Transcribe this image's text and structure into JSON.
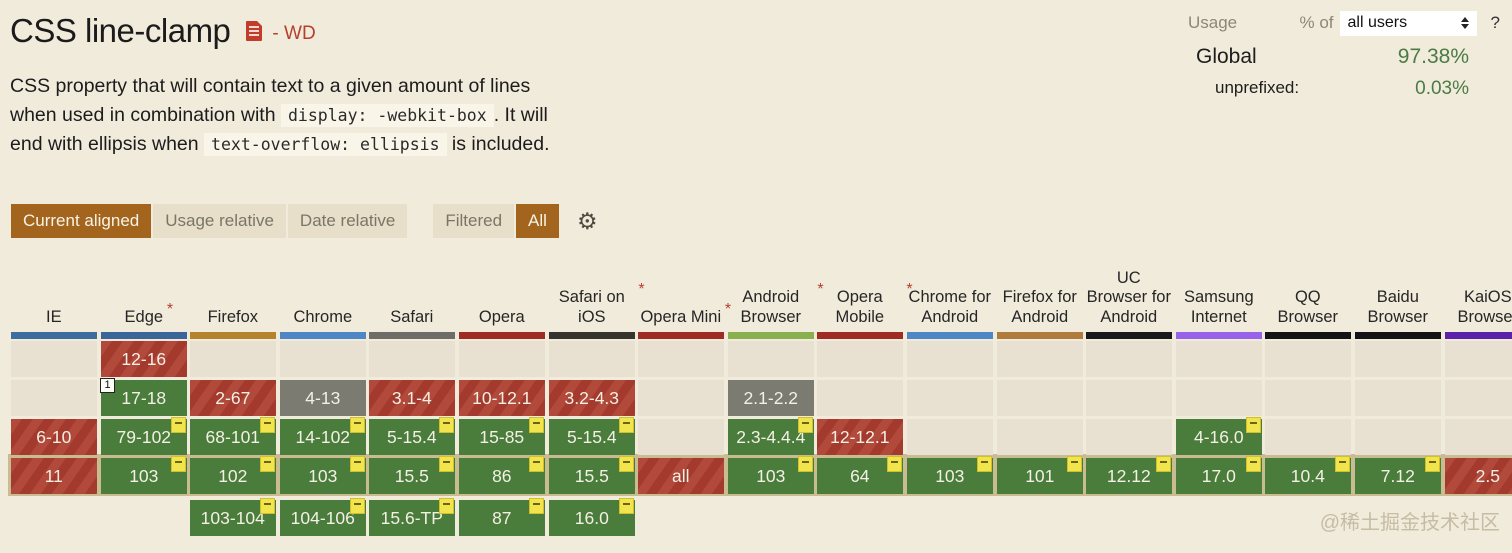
{
  "header": {
    "title": "CSS line-clamp",
    "spec_status": "- WD",
    "description_parts": [
      {
        "t": "text",
        "v": "CSS property that will contain text to a given amount of lines when used in combination with "
      },
      {
        "t": "code",
        "v": "display: -webkit-box"
      },
      {
        "t": "text",
        "v": ". It will end with ellipsis when "
      },
      {
        "t": "code",
        "v": "text-overflow: ellipsis"
      },
      {
        "t": "text",
        "v": " is included."
      }
    ]
  },
  "usage_panel": {
    "usage_label": "Usage",
    "percent_of_label": "% of",
    "select_value": "all users",
    "help_label": "?",
    "global_label": "Global",
    "global_value": "97.38%",
    "unprefixed_label": "unprefixed:",
    "unprefixed_value": "0.03%"
  },
  "toolbar": {
    "view_buttons": [
      {
        "label": "Current aligned",
        "active": true
      },
      {
        "label": "Usage relative",
        "active": false
      },
      {
        "label": "Date relative",
        "active": false
      }
    ],
    "filter_buttons": [
      {
        "label": "Filtered",
        "active": false
      },
      {
        "label": "All",
        "active": true
      }
    ]
  },
  "status_colors": {
    "supported": "#4a7c3c",
    "unsupported": "#b24a3c",
    "unknown": "#7c7b72",
    "empty": "#e8e1d2",
    "note_flag": "#f2e44d",
    "current_row_frame": "#c9bb92"
  },
  "table": {
    "columns": [
      {
        "name": "IE",
        "star": false,
        "strip": "#3d6c9e",
        "cells": [
          null,
          null,
          {
            "text": "6-10",
            "status": "unsupported"
          },
          {
            "text": "11",
            "status": "unsupported"
          },
          null
        ]
      },
      {
        "name": "Edge",
        "star": true,
        "strip": "#3a669a",
        "cells": [
          {
            "text": "12-16",
            "status": "unsupported"
          },
          {
            "text": "17-18",
            "status": "supported",
            "note": "1"
          },
          {
            "text": "79-102",
            "status": "supported",
            "flag": true
          },
          {
            "text": "103",
            "status": "supported",
            "flag": true
          },
          null
        ]
      },
      {
        "name": "Firefox",
        "star": false,
        "strip": "#b5822e",
        "cells": [
          null,
          {
            "text": "2-67",
            "status": "unsupported"
          },
          {
            "text": "68-101",
            "status": "supported",
            "flag": true
          },
          {
            "text": "102",
            "status": "supported",
            "flag": true
          },
          {
            "text": "103-104",
            "status": "supported",
            "flag": true
          }
        ]
      },
      {
        "name": "Chrome",
        "star": false,
        "strip": "#4f86c6",
        "cells": [
          null,
          {
            "text": "4-13",
            "status": "unknown"
          },
          {
            "text": "14-102",
            "status": "supported",
            "flag": true
          },
          {
            "text": "103",
            "status": "supported",
            "flag": true
          },
          {
            "text": "104-106",
            "status": "supported",
            "flag": true
          }
        ]
      },
      {
        "name": "Safari",
        "star": false,
        "strip": "#6e6d67",
        "cells": [
          null,
          {
            "text": "3.1-4",
            "status": "unsupported"
          },
          {
            "text": "5-15.4",
            "status": "supported",
            "flag": true
          },
          {
            "text": "15.5",
            "status": "supported",
            "flag": true
          },
          {
            "text": "15.6-TP",
            "status": "supported",
            "flag": true
          }
        ]
      },
      {
        "name": "Opera",
        "star": false,
        "strip": "#9e2b24",
        "cells": [
          null,
          {
            "text": "10-12.1",
            "status": "unsupported"
          },
          {
            "text": "15-85",
            "status": "supported",
            "flag": true
          },
          {
            "text": "86",
            "status": "supported",
            "flag": true
          },
          {
            "text": "87",
            "status": "supported",
            "flag": true
          }
        ]
      },
      {
        "name": "Safari on iOS",
        "star": true,
        "strip": "#37332d",
        "cells": [
          null,
          {
            "text": "3.2-4.3",
            "status": "unsupported"
          },
          {
            "text": "5-15.4",
            "status": "supported",
            "flag": true
          },
          {
            "text": "15.5",
            "status": "supported",
            "flag": true
          },
          {
            "text": "16.0",
            "status": "supported",
            "flag": true
          }
        ]
      },
      {
        "name": "Opera Mini",
        "star": true,
        "strip": "#9e2b24",
        "cells": [
          null,
          null,
          null,
          {
            "text": "all",
            "status": "unsupported"
          },
          null
        ]
      },
      {
        "name": "Android Browser",
        "star": true,
        "strip": "#8aaf4e",
        "cells": [
          null,
          {
            "text": "2.1-2.2",
            "status": "unknown"
          },
          {
            "text": "2.3-4.4.4",
            "status": "supported",
            "flag": true
          },
          {
            "text": "103",
            "status": "supported",
            "flag": true
          },
          null
        ]
      },
      {
        "name": "Opera Mobile",
        "star": true,
        "strip": "#9e2b24",
        "cells": [
          null,
          null,
          {
            "text": "12-12.1",
            "status": "unsupported"
          },
          {
            "text": "64",
            "status": "supported",
            "flag": true
          },
          null
        ]
      },
      {
        "name": "Chrome for Android",
        "star": false,
        "strip": "#4f86c6",
        "cells": [
          null,
          null,
          null,
          {
            "text": "103",
            "status": "supported",
            "flag": true
          },
          null
        ]
      },
      {
        "name": "Firefox for Android",
        "star": false,
        "strip": "#b07c3d",
        "cells": [
          null,
          null,
          null,
          {
            "text": "101",
            "status": "supported",
            "flag": true
          },
          null
        ]
      },
      {
        "name": "UC Browser for Android",
        "star": false,
        "strip": "#19191b",
        "cells": [
          null,
          null,
          null,
          {
            "text": "12.12",
            "status": "supported",
            "flag": true
          },
          null
        ]
      },
      {
        "name": "Samsung Internet",
        "star": false,
        "strip": "#9862ea",
        "cells": [
          null,
          null,
          {
            "text": "4-16.0",
            "status": "supported",
            "flag": true
          },
          {
            "text": "17.0",
            "status": "supported",
            "flag": true
          },
          null
        ]
      },
      {
        "name": "QQ Browser",
        "star": false,
        "strip": "#131316",
        "cells": [
          null,
          null,
          null,
          {
            "text": "10.4",
            "status": "supported",
            "flag": true
          },
          null
        ]
      },
      {
        "name": "Baidu Browser",
        "star": false,
        "strip": "#131316",
        "cells": [
          null,
          null,
          null,
          {
            "text": "7.12",
            "status": "supported",
            "flag": true
          },
          null
        ]
      },
      {
        "name": "KaiOS Browser",
        "star": false,
        "strip": "#5a21a9",
        "cells": [
          null,
          null,
          null,
          {
            "text": "2.5",
            "status": "unsupported"
          },
          null
        ]
      }
    ]
  },
  "watermark": "@稀土掘金技术社区"
}
